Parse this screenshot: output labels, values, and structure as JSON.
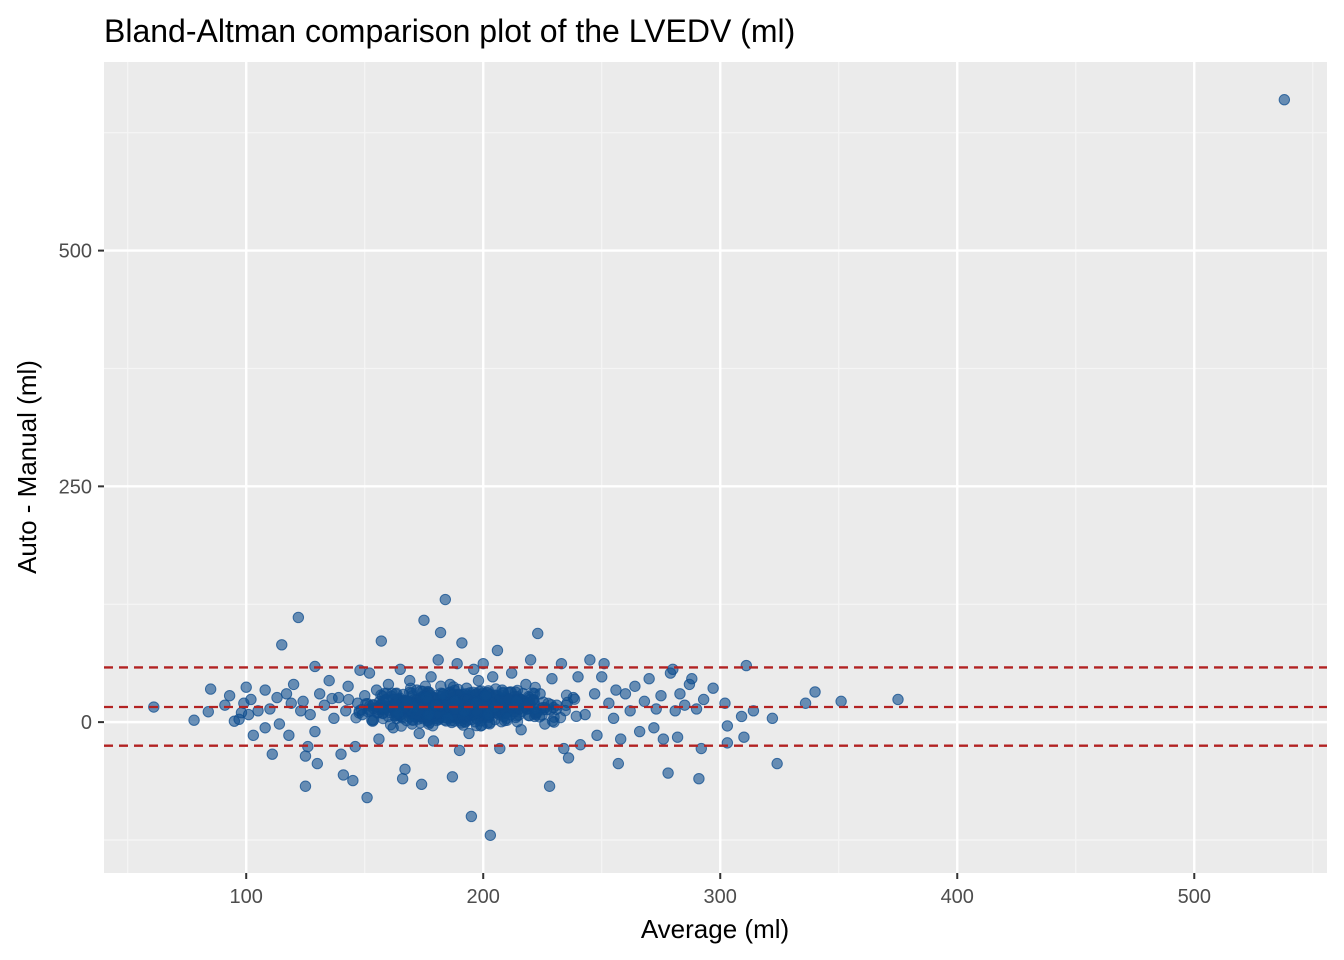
{
  "chart_data": {
    "type": "scatter",
    "title": "Bland-Altman comparison plot of the LVEDV (ml)",
    "xlabel": "Average (ml)",
    "ylabel": "Auto - Manual (ml)",
    "xlim": [
      40,
      556
    ],
    "ylim": [
      -160,
      700
    ],
    "x_ticks": [
      100,
      200,
      300,
      400,
      500
    ],
    "y_ticks": [
      0,
      250,
      500
    ],
    "grid": true,
    "legend": "none",
    "colors": {
      "panel_bg": "#ebebeb",
      "grid_major": "#ffffff",
      "grid_minor": "#f5f5f5",
      "point": "#0e4c8d",
      "reference_line": "#b22222"
    },
    "reference_lines": [
      {
        "label": "mean difference",
        "y": 16
      },
      {
        "label": "upper limit of agreement",
        "y": 58
      },
      {
        "label": "lower limit of agreement",
        "y": -25
      }
    ],
    "points": [
      [
        61,
        16
      ],
      [
        78,
        2
      ],
      [
        84,
        11
      ],
      [
        85,
        35
      ],
      [
        91,
        18
      ],
      [
        93,
        28
      ],
      [
        95,
        1
      ],
      [
        97,
        3
      ],
      [
        98,
        10
      ],
      [
        99,
        20
      ],
      [
        100,
        37
      ],
      [
        101,
        8
      ],
      [
        102,
        24
      ],
      [
        103,
        -14
      ],
      [
        105,
        12
      ],
      [
        108,
        34
      ],
      [
        108,
        -6
      ],
      [
        110,
        14
      ],
      [
        111,
        -34
      ],
      [
        113,
        26
      ],
      [
        114,
        -2
      ],
      [
        115,
        82
      ],
      [
        117,
        30
      ],
      [
        118,
        -14
      ],
      [
        119,
        20
      ],
      [
        120,
        40
      ],
      [
        122,
        111
      ],
      [
        123,
        12
      ],
      [
        124,
        22
      ],
      [
        125,
        -68
      ],
      [
        125,
        -36
      ],
      [
        126,
        -26
      ],
      [
        127,
        8
      ],
      [
        129,
        59
      ],
      [
        129,
        -10
      ],
      [
        130,
        -44
      ],
      [
        131,
        30
      ],
      [
        133,
        18
      ],
      [
        135,
        44
      ],
      [
        137,
        4
      ],
      [
        139,
        26
      ],
      [
        140,
        -34
      ],
      [
        141,
        -56
      ],
      [
        142,
        12
      ],
      [
        143,
        38
      ],
      [
        145,
        -62
      ],
      [
        146,
        -26
      ],
      [
        147,
        20
      ],
      [
        148,
        55
      ],
      [
        149,
        8
      ],
      [
        150,
        28
      ],
      [
        151,
        -80
      ],
      [
        152,
        52
      ],
      [
        153,
        2
      ],
      [
        155,
        34
      ],
      [
        156,
        -18
      ],
      [
        157,
        86
      ],
      [
        158,
        14
      ],
      [
        159,
        24
      ],
      [
        160,
        40
      ],
      [
        162,
        -6
      ],
      [
        163,
        30
      ],
      [
        164,
        10
      ],
      [
        165,
        56
      ],
      [
        166,
        -60
      ],
      [
        167,
        -50
      ],
      [
        168,
        22
      ],
      [
        169,
        44
      ],
      [
        170,
        -2
      ],
      [
        171,
        16
      ],
      [
        172,
        34
      ],
      [
        173,
        -12
      ],
      [
        174,
        -66
      ],
      [
        175,
        108
      ],
      [
        176,
        26
      ],
      [
        177,
        8
      ],
      [
        178,
        48
      ],
      [
        179,
        -20
      ],
      [
        180,
        18
      ],
      [
        181,
        66
      ],
      [
        182,
        95
      ],
      [
        183,
        30
      ],
      [
        184,
        130
      ],
      [
        185,
        4
      ],
      [
        186,
        40
      ],
      [
        187,
        -58
      ],
      [
        188,
        22
      ],
      [
        189,
        62
      ],
      [
        190,
        -30
      ],
      [
        191,
        84
      ],
      [
        192,
        12
      ],
      [
        193,
        36
      ],
      [
        194,
        -12
      ],
      [
        195,
        -100
      ],
      [
        196,
        56
      ],
      [
        197,
        20
      ],
      [
        198,
        44
      ],
      [
        199,
        -4
      ],
      [
        200,
        62
      ],
      [
        201,
        28
      ],
      [
        202,
        8
      ],
      [
        203,
        -120
      ],
      [
        204,
        48
      ],
      [
        205,
        16
      ],
      [
        206,
        76
      ],
      [
        207,
        -28
      ],
      [
        208,
        34
      ],
      [
        210,
        4
      ],
      [
        212,
        52
      ],
      [
        214,
        22
      ],
      [
        216,
        -8
      ],
      [
        218,
        40
      ],
      [
        220,
        66
      ],
      [
        222,
        14
      ],
      [
        223,
        94
      ],
      [
        224,
        30
      ],
      [
        226,
        -2
      ],
      [
        228,
        -68
      ],
      [
        229,
        46
      ],
      [
        231,
        18
      ],
      [
        233,
        62
      ],
      [
        234,
        -28
      ],
      [
        236,
        -38
      ],
      [
        238,
        26
      ],
      [
        240,
        48
      ],
      [
        241,
        -24
      ],
      [
        243,
        8
      ],
      [
        245,
        66
      ],
      [
        247,
        30
      ],
      [
        248,
        -14
      ],
      [
        250,
        48
      ],
      [
        251,
        62
      ],
      [
        253,
        20
      ],
      [
        255,
        4
      ],
      [
        256,
        34
      ],
      [
        257,
        -44
      ],
      [
        258,
        -18
      ],
      [
        260,
        30
      ],
      [
        262,
        12
      ],
      [
        264,
        38
      ],
      [
        266,
        -10
      ],
      [
        268,
        22
      ],
      [
        270,
        46
      ],
      [
        272,
        -6
      ],
      [
        273,
        14
      ],
      [
        275,
        28
      ],
      [
        276,
        -18
      ],
      [
        278,
        -54
      ],
      [
        279,
        52
      ],
      [
        280,
        56
      ],
      [
        281,
        12
      ],
      [
        282,
        -16
      ],
      [
        283,
        30
      ],
      [
        285,
        18
      ],
      [
        287,
        40
      ],
      [
        288,
        46
      ],
      [
        290,
        14
      ],
      [
        291,
        -60
      ],
      [
        292,
        -28
      ],
      [
        293,
        24
      ],
      [
        297,
        36
      ],
      [
        302,
        20
      ],
      [
        303,
        -4
      ],
      [
        303,
        -22
      ],
      [
        309,
        6
      ],
      [
        310,
        -16
      ],
      [
        311,
        60
      ],
      [
        314,
        12
      ],
      [
        322,
        4
      ],
      [
        324,
        -44
      ],
      [
        336,
        20
      ],
      [
        340,
        32
      ],
      [
        351,
        22
      ],
      [
        375,
        24
      ],
      [
        538,
        660
      ]
    ]
  }
}
